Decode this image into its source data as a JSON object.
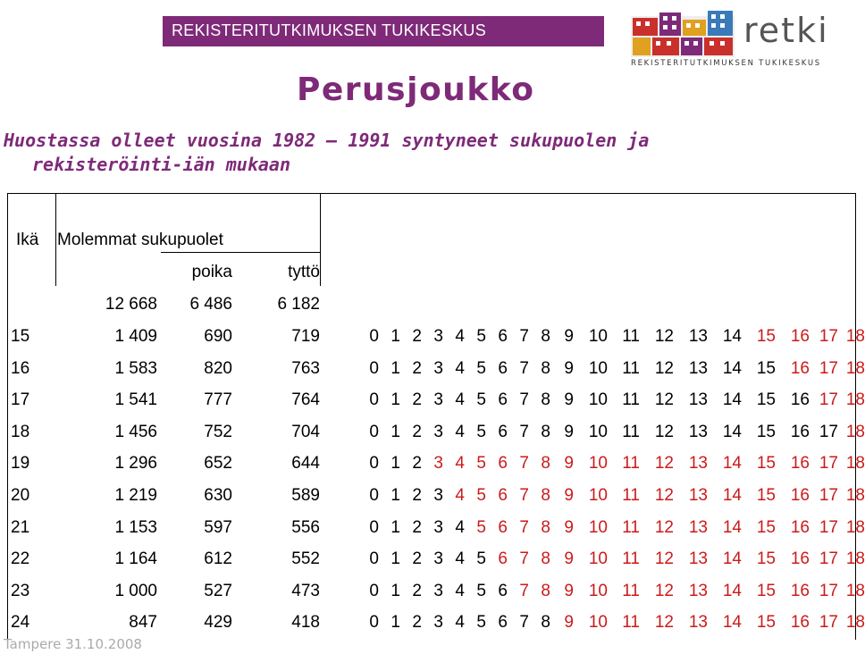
{
  "header": {
    "banner_text": "REKISTERITUTKIMUKSEN TUKIKESKUS",
    "logo_word": "retki",
    "logo_subtitle": "REKISTERITUTKIMUKSEN TUKIKESKUS"
  },
  "title": "Perusjoukko",
  "subtitle_line1": "Huostassa olleet vuosina 1982 – 1991 syntyneet sukupuolen ja",
  "subtitle_line2": "rekisteröinti-iän mukaan",
  "table": {
    "col_age": "Ikä",
    "col_both": "Molemmat sukupuolet",
    "col_boy": "poika",
    "col_girl": "tyttö",
    "totals": {
      "both": "12 668",
      "boy": "6 486",
      "girl": "6 182"
    },
    "rows": [
      {
        "age": "15",
        "both": "1 409",
        "boy": "690",
        "girl": "719"
      },
      {
        "age": "16",
        "both": "1 583",
        "boy": "820",
        "girl": "763"
      },
      {
        "age": "17",
        "both": "1 541",
        "boy": "777",
        "girl": "764"
      },
      {
        "age": "18",
        "both": "1 456",
        "boy": "752",
        "girl": "704"
      },
      {
        "age": "19",
        "both": "1 296",
        "boy": "652",
        "girl": "644"
      },
      {
        "age": "20",
        "both": "1 219",
        "boy": "630",
        "girl": "589"
      },
      {
        "age": "21",
        "both": "1 153",
        "boy": "597",
        "girl": "556"
      },
      {
        "age": "22",
        "both": "1 164",
        "boy": "612",
        "girl": "552"
      },
      {
        "age": "23",
        "both": "1 000",
        "boy": "527",
        "girl": "473"
      },
      {
        "age": "24",
        "both": "847",
        "boy": "429",
        "girl": "418"
      }
    ],
    "sequence": [
      "0",
      "1",
      "2",
      "3",
      "4",
      "5",
      "6",
      "7",
      "8",
      "9",
      "10",
      "11",
      "12",
      "13",
      "14",
      "15",
      "16",
      "17",
      "18"
    ],
    "red_from_index": [
      15,
      16,
      17,
      18,
      3,
      4,
      5,
      6,
      7,
      9
    ]
  },
  "footer": "Tampere 31.10.2008",
  "colors": {
    "accent": "#7e2a78",
    "highlight": "#cc1a1a"
  }
}
